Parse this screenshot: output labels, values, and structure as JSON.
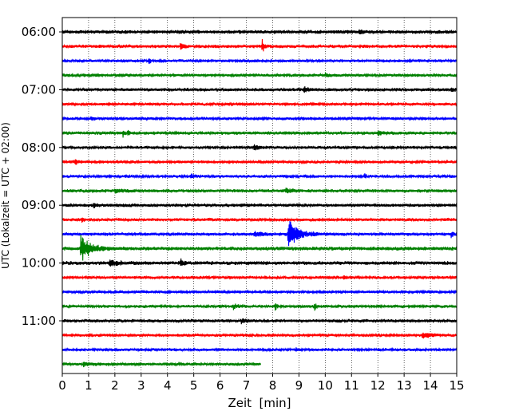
{
  "chart_data": {
    "type": "line",
    "title": "",
    "xlabel": "Zeit  [min]",
    "ylabel": "UTC (Lokalzeit = UTC + 02:00)",
    "xlim": [
      0,
      15
    ],
    "x_ticks": [
      0,
      1,
      2,
      3,
      4,
      5,
      6,
      7,
      8,
      9,
      10,
      11,
      12,
      13,
      14,
      15
    ],
    "x_grid": "vertical dotted lines at each minute",
    "y_tick_labels": [
      "06:00",
      "07:00",
      "08:00",
      "09:00",
      "10:00",
      "11:00"
    ],
    "rows_per_hour": 4,
    "row_minutes": 15,
    "color_cycle": [
      "#000000",
      "#ff0000",
      "#0000ff",
      "#008000"
    ],
    "last_row_end_minute": 7.55,
    "rows": [
      {
        "start": "06:00",
        "color": "#000000",
        "noise": 0.45,
        "events": [
          {
            "t": 11.3,
            "amp": 0.7,
            "dur": 0.12
          }
        ]
      },
      {
        "start": "06:15",
        "color": "#ff0000",
        "noise": 0.4,
        "events": [
          {
            "t": 4.5,
            "amp": 1.3,
            "dur": 0.08
          },
          {
            "t": 7.6,
            "amp": 1.3,
            "dur": 0.08
          }
        ]
      },
      {
        "start": "06:30",
        "color": "#0000ff",
        "noise": 0.35,
        "events": [
          {
            "t": 3.3,
            "amp": 0.8,
            "dur": 0.06
          }
        ]
      },
      {
        "start": "06:45",
        "color": "#008000",
        "noise": 0.35,
        "events": [
          {
            "t": 10.0,
            "amp": 0.5,
            "dur": 0.2
          }
        ]
      },
      {
        "start": "07:00",
        "color": "#000000",
        "noise": 0.4,
        "events": [
          {
            "t": 9.2,
            "amp": 0.6,
            "dur": 0.15
          },
          {
            "t": 14.8,
            "amp": 0.6,
            "dur": 0.08
          }
        ]
      },
      {
        "start": "07:15",
        "color": "#ff0000",
        "noise": 0.35,
        "events": []
      },
      {
        "start": "07:30",
        "color": "#0000ff",
        "noise": 0.35,
        "events": [
          {
            "t": 1.1,
            "amp": 0.5,
            "dur": 0.1
          }
        ]
      },
      {
        "start": "07:45",
        "color": "#008000",
        "noise": 0.4,
        "events": [
          {
            "t": 2.3,
            "amp": 0.9,
            "dur": 0.05
          },
          {
            "t": 2.5,
            "amp": 0.9,
            "dur": 0.05
          },
          {
            "t": 12.0,
            "amp": 0.5,
            "dur": 0.2
          }
        ]
      },
      {
        "start": "08:00",
        "color": "#000000",
        "noise": 0.35,
        "events": [
          {
            "t": 7.3,
            "amp": 0.6,
            "dur": 0.2
          }
        ]
      },
      {
        "start": "08:15",
        "color": "#ff0000",
        "noise": 0.35,
        "events": [
          {
            "t": 0.5,
            "amp": 0.5,
            "dur": 0.1
          }
        ]
      },
      {
        "start": "08:30",
        "color": "#0000ff",
        "noise": 0.35,
        "events": [
          {
            "t": 4.9,
            "amp": 0.6,
            "dur": 0.1
          },
          {
            "t": 11.5,
            "amp": 0.7,
            "dur": 0.05
          }
        ]
      },
      {
        "start": "08:45",
        "color": "#008000",
        "noise": 0.4,
        "events": [
          {
            "t": 2.0,
            "amp": 0.5,
            "dur": 0.3
          },
          {
            "t": 8.5,
            "amp": 0.5,
            "dur": 0.2
          }
        ]
      },
      {
        "start": "09:00",
        "color": "#000000",
        "noise": 0.4,
        "events": [
          {
            "t": 1.2,
            "amp": 0.5,
            "dur": 0.1
          }
        ]
      },
      {
        "start": "09:15",
        "color": "#ff0000",
        "noise": 0.4,
        "events": [
          {
            "t": 0.75,
            "amp": 0.7,
            "dur": 0.08
          }
        ]
      },
      {
        "start": "09:30",
        "color": "#0000ff",
        "noise": 0.4,
        "events": [
          {
            "t": 7.3,
            "amp": 0.6,
            "dur": 0.3
          },
          {
            "t": 8.6,
            "amp": 3.5,
            "dur": 0.35
          },
          {
            "t": 14.8,
            "amp": 0.7,
            "dur": 0.08
          }
        ]
      },
      {
        "start": "09:45",
        "color": "#008000",
        "noise": 0.45,
        "events": [
          {
            "t": 0.7,
            "amp": 3.2,
            "dur": 0.35
          }
        ]
      },
      {
        "start": "10:00",
        "color": "#000000",
        "noise": 0.45,
        "events": [
          {
            "t": 1.8,
            "amp": 0.8,
            "dur": 0.3
          },
          {
            "t": 4.5,
            "amp": 1.0,
            "dur": 0.1
          }
        ]
      },
      {
        "start": "10:15",
        "color": "#ff0000",
        "noise": 0.35,
        "events": [
          {
            "t": 10.7,
            "amp": 0.7,
            "dur": 0.08
          }
        ]
      },
      {
        "start": "10:30",
        "color": "#0000ff",
        "noise": 0.35,
        "events": []
      },
      {
        "start": "10:45",
        "color": "#008000",
        "noise": 0.35,
        "events": [
          {
            "t": 6.5,
            "amp": 0.5,
            "dur": 0.2
          },
          {
            "t": 8.1,
            "amp": 1.2,
            "dur": 0.05
          },
          {
            "t": 9.6,
            "amp": 1.0,
            "dur": 0.05
          }
        ]
      },
      {
        "start": "11:00",
        "color": "#000000",
        "noise": 0.4,
        "events": [
          {
            "t": 6.8,
            "amp": 0.5,
            "dur": 0.2
          }
        ]
      },
      {
        "start": "11:15",
        "color": "#ff0000",
        "noise": 0.35,
        "events": [
          {
            "t": 13.7,
            "amp": 0.8,
            "dur": 0.3
          }
        ]
      },
      {
        "start": "11:30",
        "color": "#0000ff",
        "noise": 0.35,
        "events": [
          {
            "t": 8.9,
            "amp": 0.6,
            "dur": 0.05
          }
        ]
      },
      {
        "start": "11:45",
        "color": "#008000",
        "noise": 0.35,
        "events": [
          {
            "t": 0.8,
            "amp": 0.5,
            "dur": 0.3
          }
        ]
      }
    ]
  }
}
